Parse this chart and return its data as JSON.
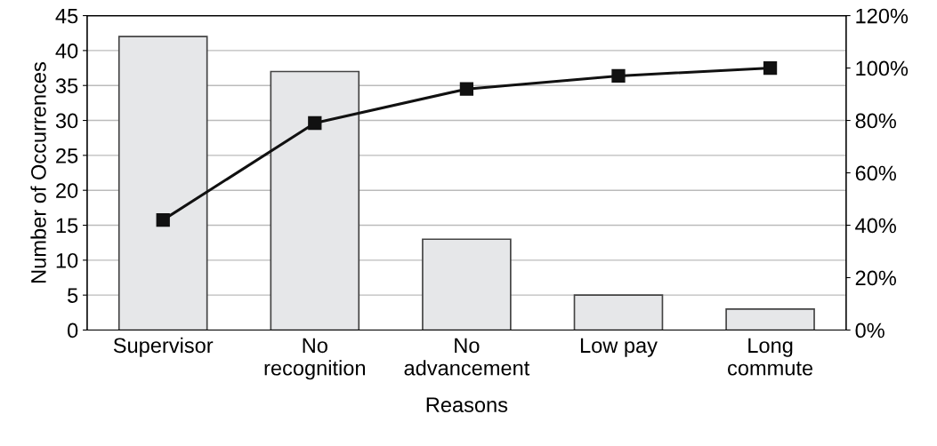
{
  "chart_data": {
    "type": "bar",
    "xlabel": "Reasons",
    "ylabel": "Number of Occurrences",
    "categories": [
      "Supervisor",
      "No\nrecognition",
      "No\nadvancement",
      "Low pay",
      "Long\ncommute"
    ],
    "series": [
      {
        "color": "#e6e7e9",
        "values": [
          42,
          37,
          13,
          5,
          3
        ]
      },
      {
        "type": "line",
        "axis": "y2",
        "color": "#111111",
        "marker": "square",
        "line_style": "solid",
        "values": [
          42,
          79,
          92,
          97,
          100
        ]
      }
    ],
    "ylim": [
      0,
      45
    ],
    "yticks": [
      0,
      5,
      10,
      15,
      20,
      25,
      30,
      35,
      40,
      45
    ],
    "y2lim": [
      0,
      120
    ],
    "y2ticks": [
      {
        "value": 0,
        "label": "0%"
      },
      {
        "value": 20,
        "label": "20%"
      },
      {
        "value": 40,
        "label": "40%"
      },
      {
        "value": 60,
        "label": "60%"
      },
      {
        "value": 80,
        "label": "80%"
      },
      {
        "value": 100,
        "label": "100%"
      },
      {
        "value": 120,
        "label": "120%"
      }
    ],
    "grid": "y"
  }
}
